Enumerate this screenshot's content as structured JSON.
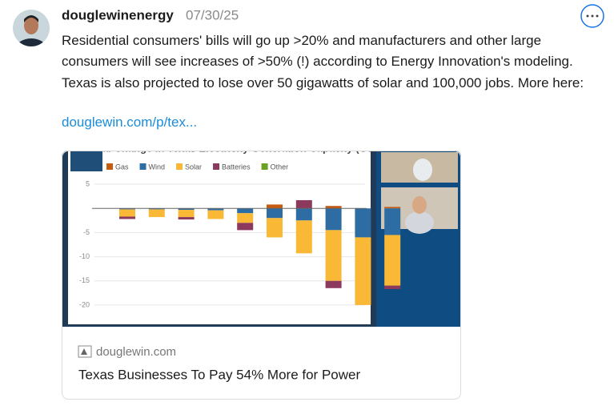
{
  "post": {
    "username": "douglewinenergy",
    "date": "07/30/25",
    "text": "Residential consumers' bills will go up >20% and manufacturers and other large consumers will see increases of >50% (!) according to Energy Innovation's modeling. Texas is also projected to lose over 50 gigawatts of solar and 100,000 jobs. More here:",
    "link": "douglewin.com/p/tex...",
    "card": {
      "domain": "douglewin.com",
      "title": "Texas Businesses To Pay 54% More for Power"
    }
  },
  "chart_data": {
    "type": "bar",
    "stacked": true,
    "title": "al Change in Texas Electricity Generation Capacity (GW)",
    "categories": [
      null,
      null,
      null,
      null,
      null,
      null,
      null,
      null,
      null,
      null
    ],
    "series": [
      {
        "name": "Gas",
        "color": "#c55a11",
        "values": [
          0,
          0,
          0,
          0,
          0,
          0.8,
          0,
          0.5,
          0,
          0.3
        ]
      },
      {
        "name": "Wind",
        "color": "#2e6da4",
        "values": [
          -0.2,
          -0.2,
          -0.3,
          -0.4,
          -1,
          -2,
          -2.5,
          -4.5,
          -6,
          -5.5
        ]
      },
      {
        "name": "Solar",
        "color": "#f9b937",
        "values": [
          -1.5,
          -1.6,
          -1.5,
          -1.8,
          -2,
          -4,
          -6.8,
          -10.5,
          -14,
          -10.5
        ]
      },
      {
        "name": "Batteries",
        "color": "#8b3a5e",
        "values": [
          -0.5,
          0,
          -0.5,
          0,
          -1.5,
          0,
          1.7,
          -1.5,
          0,
          -0.7
        ]
      },
      {
        "name": "Other",
        "color": "#6aa121",
        "values": [
          0,
          0,
          0,
          0,
          0,
          0,
          0,
          0,
          0,
          0
        ]
      }
    ],
    "ylim": [
      -22,
      6
    ],
    "yticks": [
      5,
      -5,
      -10,
      -15,
      -20
    ],
    "grid": true,
    "legend": "top"
  }
}
